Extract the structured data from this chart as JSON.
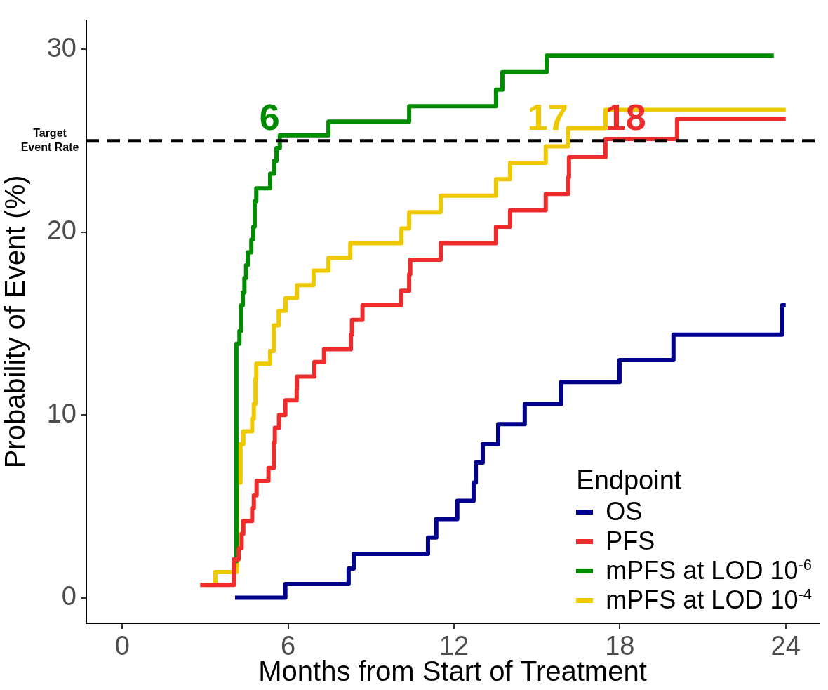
{
  "chart_data": {
    "type": "step",
    "xlabel": "Months from Start of Treatment",
    "ylabel": "Probability of Event (%)",
    "legend_title": "Endpoint",
    "legend": "bottom right",
    "grid": false,
    "line_style": "solid",
    "marker": "none",
    "xlim": [
      -1.3,
      25.2
    ],
    "xticks": [
      0,
      6,
      12,
      18,
      24
    ],
    "ylim": [
      -1.4,
      31.6
    ],
    "yticks": [
      0,
      10,
      20,
      30
    ],
    "ref_lines": [
      {
        "axis": "y",
        "value": 25,
        "label": "Target Event Rate",
        "color": "#000000",
        "line_style": "dashed"
      }
    ],
    "annotations": [
      {
        "text": "6",
        "x": 5.7,
        "y": 25
      },
      {
        "text": "17",
        "x": 16.13,
        "y": 25
      },
      {
        "text": "18",
        "x": 17.48,
        "y": 25
      }
    ],
    "series": [
      {
        "name": "OS",
        "color": "#00008b",
        "x": [
          4.08,
          5.9,
          8.19,
          8.37,
          11.06,
          11.36,
          12.12,
          12.71,
          12.79,
          13.04,
          13.6,
          14.56,
          15.88,
          17.99,
          19.94,
          23.87,
          24.0
        ],
        "values": [
          0,
          0.75,
          1.6,
          2.4,
          3.3,
          4.3,
          5.3,
          6.3,
          7.4,
          8.4,
          9.5,
          10.6,
          11.8,
          13.0,
          14.4,
          16.0,
          16.0
        ]
      },
      {
        "name": "PFS",
        "color": "#ee2c2c",
        "x": [
          2.82,
          4.04,
          4.21,
          4.32,
          4.38,
          4.7,
          4.76,
          4.86,
          5.29,
          5.48,
          5.52,
          5.67,
          5.9,
          6.31,
          6.32,
          6.95,
          7.3,
          8.27,
          8.31,
          8.69,
          10.09,
          10.38,
          10.42,
          11.52,
          13.52,
          14.03,
          15.32,
          16.13,
          16.16,
          17.48,
          20.07,
          24.0
        ],
        "values": [
          0.7,
          2.1,
          2.7,
          3.5,
          4.2,
          4.9,
          5.6,
          6.4,
          7.1,
          8.5,
          9.3,
          10.0,
          10.8,
          11.4,
          12.1,
          12.9,
          13.6,
          14.4,
          15.2,
          16.0,
          16.8,
          17.7,
          18.5,
          19.4,
          20.3,
          21.2,
          22.1,
          23.0,
          24.1,
          25.1,
          26.2,
          26.2
        ]
      },
      {
        "name": "mPFS at LOD 10$^{-6}$",
        "color": "#008b00",
        "x": [
          4.05,
          4.13,
          4.24,
          4.3,
          4.36,
          4.42,
          4.48,
          4.54,
          4.67,
          4.74,
          4.79,
          4.85,
          5.35,
          5.49,
          5.58,
          5.7,
          7.46,
          10.38,
          13.52,
          13.75,
          15.35,
          23.57
        ],
        "values": [
          2.0,
          13.9,
          14.6,
          16.0,
          16.7,
          17.5,
          18.2,
          18.9,
          19.6,
          20.3,
          21.7,
          22.4,
          23.2,
          23.9,
          24.6,
          25.3,
          26.05,
          26.9,
          27.8,
          28.76,
          29.66,
          29.66
        ]
      },
      {
        "name": "mPFS at LOD 10$^{-4}$",
        "color": "#eec900",
        "x": [
          2.99,
          3.37,
          4.15,
          4.28,
          4.38,
          4.7,
          4.76,
          4.82,
          4.85,
          5.35,
          5.48,
          5.66,
          5.91,
          6.32,
          6.92,
          7.46,
          8.25,
          10.1,
          10.38,
          11.52,
          13.52,
          14.03,
          15.32,
          16.13,
          17.48,
          24.0
        ],
        "values": [
          0.7,
          1.4,
          6.3,
          8.4,
          9.1,
          9.8,
          10.6,
          12.0,
          12.8,
          13.5,
          14.9,
          15.7,
          16.4,
          17.1,
          17.9,
          18.6,
          19.4,
          20.2,
          21.1,
          22.0,
          22.9,
          23.8,
          24.7,
          25.7,
          26.7,
          26.7
        ]
      }
    ]
  }
}
